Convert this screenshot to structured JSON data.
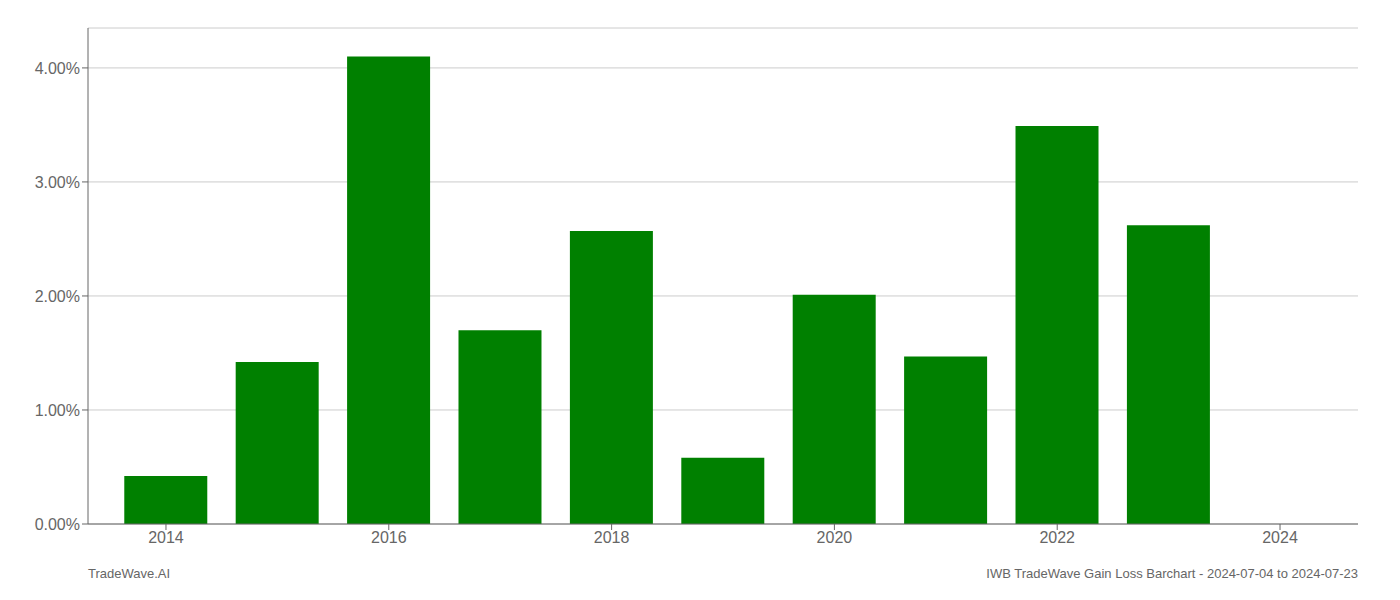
{
  "chart_data": {
    "type": "bar",
    "x": [
      2014,
      2015,
      2016,
      2017,
      2018,
      2019,
      2020,
      2021,
      2022,
      2023
    ],
    "values": [
      0.0042,
      0.0142,
      0.041,
      0.017,
      0.0257,
      0.0058,
      0.0201,
      0.0147,
      0.0349,
      0.0262
    ],
    "color": "#008000",
    "xlim": [
      2013.3,
      2024.7
    ],
    "xticks": [
      2014,
      2016,
      2018,
      2020,
      2022,
      2024
    ],
    "ylim": [
      0,
      0.0435
    ],
    "yticks": [
      {
        "value": 0.0,
        "label": "0.00%"
      },
      {
        "value": 0.01,
        "label": "1.00%"
      },
      {
        "value": 0.02,
        "label": "2.00%"
      },
      {
        "value": 0.03,
        "label": "3.00%"
      },
      {
        "value": 0.04,
        "label": "4.00%"
      }
    ],
    "grid": true,
    "annotations": [
      "TradeWave.AI",
      "IWB TradeWave Gain Loss Barchart - 2024-07-04 to 2024-07-23"
    ]
  }
}
